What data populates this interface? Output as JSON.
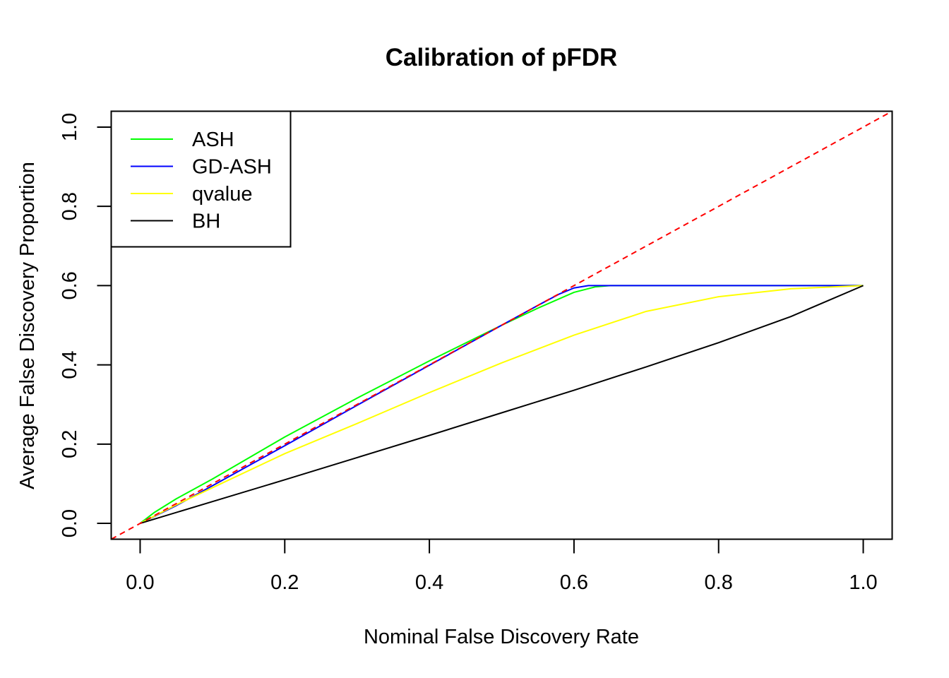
{
  "chart_data": {
    "type": "line",
    "title": "Calibration of pFDR",
    "xlabel": "Nominal False Discovery Rate",
    "ylabel": "Average False Discovery Proportion",
    "xlim": [
      -0.04,
      1.04
    ],
    "ylim": [
      -0.04,
      1.04
    ],
    "xticks": [
      0.0,
      0.2,
      0.4,
      0.6,
      0.8,
      1.0
    ],
    "yticks": [
      0.0,
      0.2,
      0.4,
      0.6,
      0.8,
      1.0
    ],
    "xtick_labels": [
      "0.0",
      "0.2",
      "0.4",
      "0.6",
      "0.8",
      "1.0"
    ],
    "ytick_labels": [
      "0.0",
      "0.2",
      "0.4",
      "0.6",
      "0.8",
      "1.0"
    ],
    "legend_position": "top-left",
    "grid": false,
    "reference_line": {
      "style": "dashed",
      "color": "#FF0000",
      "x": [
        -0.04,
        1.04
      ],
      "y": [
        -0.04,
        1.04
      ]
    },
    "series": [
      {
        "name": "ASH",
        "color": "#00FF00",
        "x": [
          0.0,
          0.02,
          0.05,
          0.1,
          0.15,
          0.2,
          0.25,
          0.3,
          0.35,
          0.4,
          0.45,
          0.5,
          0.55,
          0.6,
          0.63,
          0.65,
          0.7,
          0.8,
          0.9,
          1.0
        ],
        "y": [
          0.0,
          0.028,
          0.062,
          0.112,
          0.165,
          0.218,
          0.267,
          0.316,
          0.363,
          0.41,
          0.455,
          0.5,
          0.543,
          0.583,
          0.597,
          0.6,
          0.6,
          0.6,
          0.6,
          0.6
        ]
      },
      {
        "name": "GD-ASH",
        "color": "#0000FF",
        "x": [
          0.0,
          0.05,
          0.1,
          0.2,
          0.3,
          0.4,
          0.5,
          0.55,
          0.58,
          0.6,
          0.62,
          0.65,
          0.7,
          0.8,
          0.9,
          1.0
        ],
        "y": [
          0.0,
          0.045,
          0.095,
          0.196,
          0.298,
          0.399,
          0.5,
          0.55,
          0.579,
          0.594,
          0.6,
          0.6,
          0.6,
          0.6,
          0.6,
          0.6
        ]
      },
      {
        "name": "qvalue",
        "color": "#FFFF00",
        "x": [
          0.0,
          0.05,
          0.1,
          0.2,
          0.3,
          0.4,
          0.5,
          0.6,
          0.7,
          0.8,
          0.9,
          1.0
        ],
        "y": [
          0.0,
          0.047,
          0.09,
          0.176,
          0.252,
          0.33,
          0.405,
          0.475,
          0.535,
          0.572,
          0.592,
          0.6
        ]
      },
      {
        "name": "BH",
        "color": "#000000",
        "x": [
          0.0,
          0.1,
          0.2,
          0.3,
          0.4,
          0.5,
          0.6,
          0.7,
          0.8,
          0.9,
          1.0
        ],
        "y": [
          0.0,
          0.055,
          0.11,
          0.166,
          0.222,
          0.279,
          0.336,
          0.395,
          0.456,
          0.522,
          0.6
        ]
      }
    ]
  }
}
